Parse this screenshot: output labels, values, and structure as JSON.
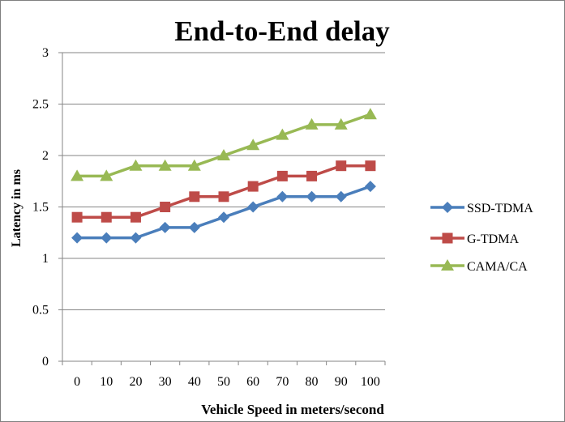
{
  "chart_data": {
    "type": "line",
    "title": "End-to-End delay",
    "xlabel": "Vehicle Speed in meters/second",
    "ylabel": "Latency in ms",
    "categories": [
      "0",
      "10",
      "20",
      "30",
      "40",
      "50",
      "60",
      "70",
      "80",
      "90",
      "100"
    ],
    "y_ticks": [
      "0",
      "0.5",
      "1",
      "1.5",
      "2",
      "2.5",
      "3"
    ],
    "ylim": [
      0,
      3
    ],
    "grid": "horizontal",
    "legend_position": "right",
    "series": [
      {
        "name": "SSD-TDMA",
        "color": "#4a7ebb",
        "marker": "diamond",
        "values": [
          1.2,
          1.2,
          1.2,
          1.3,
          1.3,
          1.4,
          1.5,
          1.6,
          1.6,
          1.6,
          1.7
        ]
      },
      {
        "name": "G-TDMA",
        "color": "#be4b48",
        "marker": "square",
        "values": [
          1.4,
          1.4,
          1.4,
          1.5,
          1.6,
          1.6,
          1.7,
          1.8,
          1.8,
          1.9,
          1.9
        ]
      },
      {
        "name": "CAMA/CA",
        "color": "#98b954",
        "marker": "triangle",
        "values": [
          1.8,
          1.8,
          1.9,
          1.9,
          1.9,
          2.0,
          2.1,
          2.2,
          2.3,
          2.3,
          2.4
        ]
      }
    ]
  }
}
